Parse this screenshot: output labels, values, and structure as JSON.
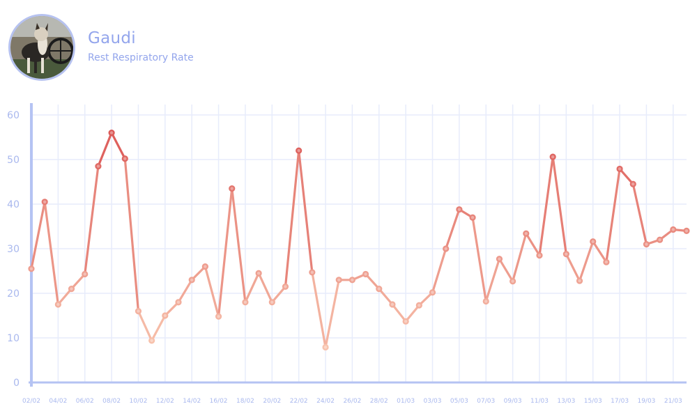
{
  "profile": {
    "name": "Gaudi",
    "metric": "Rest Respiratory Rate"
  },
  "colors": {
    "axis": "#b5c3f3",
    "grid": "#e7ecfb",
    "tick_text": "#a9b8ee",
    "low": "#f8c4ae",
    "high": "#dc5a58",
    "title": "#93a5ec"
  },
  "chart_data": {
    "type": "line",
    "title": "Rest Respiratory Rate",
    "xlabel": "",
    "ylabel": "",
    "ylim": [
      0,
      60
    ],
    "yticks": [
      0,
      10,
      20,
      30,
      40,
      50,
      60
    ],
    "grid": true,
    "legend": "none",
    "x": [
      "02/02",
      "03/02",
      "04/02",
      "05/02",
      "06/02",
      "07/02",
      "08/02",
      "09/02",
      "10/02",
      "11/02",
      "12/02",
      "13/02",
      "14/02",
      "15/02",
      "16/02",
      "17/02",
      "18/02",
      "19/02",
      "20/02",
      "21/02",
      "22/02",
      "23/02",
      "24/02",
      "25/02",
      "26/02",
      "27/02",
      "28/02",
      "29/02",
      "01/03",
      "02/03",
      "03/03",
      "04/03",
      "05/03",
      "06/03",
      "07/03",
      "08/03",
      "09/03",
      "10/03",
      "11/03",
      "12/03",
      "13/03",
      "14/03",
      "15/03",
      "16/03",
      "17/03",
      "18/03",
      "19/03",
      "20/03",
      "21/03",
      "22/03"
    ],
    "xtick_labels": [
      "02/02",
      "04/02",
      "06/02",
      "08/02",
      "10/02",
      "12/02",
      "14/02",
      "16/02",
      "18/02",
      "20/02",
      "22/02",
      "24/02",
      "26/02",
      "28/02",
      "01/03",
      "03/03",
      "05/03",
      "07/03",
      "09/03",
      "11/03",
      "13/03",
      "15/03",
      "17/03",
      "19/03",
      "21/03"
    ],
    "series": [
      {
        "name": "Rest Respiratory Rate",
        "values": [
          25.5,
          40.5,
          17.5,
          21,
          24.3,
          48.5,
          56,
          50.2,
          16,
          9.4,
          15,
          18,
          23,
          26,
          14.8,
          43.5,
          18,
          24.5,
          18,
          21.5,
          52,
          24.7,
          7.9,
          23,
          23,
          24.3,
          21,
          17.5,
          13.7,
          17.3,
          20.2,
          30,
          38.8,
          37,
          18.2,
          27.7,
          22.7,
          33.4,
          28.5,
          50.6,
          28.8,
          22.8,
          31.6,
          27,
          47.9,
          44.5,
          31,
          32,
          34.3,
          34
        ]
      }
    ]
  }
}
